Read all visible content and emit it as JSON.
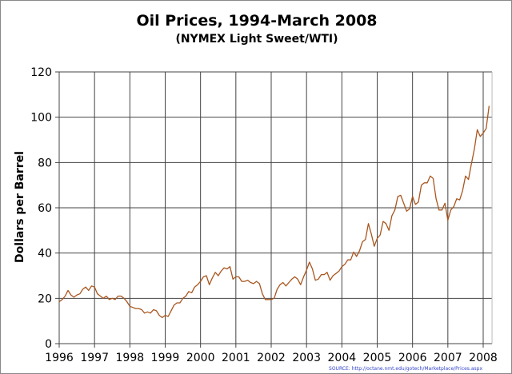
{
  "chart_data": {
    "type": "line",
    "title": "Oil Prices, 1994-March 2008",
    "subtitle": "(NYMEX Light Sweet/WTI)",
    "ylabel": "Dollars per Barrel",
    "xlabel": "",
    "xlim": [
      1996,
      2008.25
    ],
    "ylim": [
      0,
      120
    ],
    "xticks": [
      "1996",
      "1997",
      "1998",
      "1999",
      "2000",
      "2001",
      "2002",
      "2003",
      "2004",
      "2005",
      "2006",
      "2007",
      "2008"
    ],
    "yticks": [
      "0",
      "20",
      "40",
      "60",
      "80",
      "100",
      "120"
    ],
    "grid": true,
    "legend": "none",
    "line_color": "#a9561f",
    "series": [
      {
        "x_start": 1996,
        "x_step_months": 1,
        "values": [
          18.5,
          19.5,
          21,
          23.5,
          21.5,
          20.5,
          21.5,
          22,
          24,
          25,
          23.5,
          25.5,
          25,
          22,
          21,
          20,
          21,
          19.5,
          20,
          19.5,
          21,
          21,
          20,
          18.5,
          16.5,
          16,
          15.5,
          15.5,
          15,
          13.5,
          14,
          13.5,
          15,
          14.5,
          12.5,
          11.5,
          12.5,
          12,
          14.5,
          17,
          18,
          18,
          20,
          21,
          23,
          22.5,
          25,
          26,
          27.5,
          29.5,
          30,
          26,
          29,
          31.5,
          30,
          32,
          33.5,
          33,
          34,
          28.5,
          29.5,
          29.5,
          27.5,
          27.5,
          28,
          27,
          26.5,
          27.5,
          26.5,
          22,
          19.5,
          19.5,
          19.5,
          20,
          24,
          26,
          27,
          25.5,
          27,
          28.5,
          29.5,
          28.5,
          26,
          29.5,
          32.5,
          36,
          33,
          28,
          28.5,
          30.5,
          30.5,
          31.5,
          28,
          30,
          31,
          32,
          34,
          35,
          37,
          37,
          40.5,
          38.5,
          41,
          45,
          46,
          53,
          48.5,
          43,
          46.5,
          48,
          54,
          53,
          50,
          56.5,
          59,
          65,
          65.5,
          62,
          58.5,
          59.5,
          65,
          61.5,
          62.5,
          70,
          71,
          71,
          74,
          73,
          64,
          59,
          59,
          62,
          54.5,
          59,
          60.5,
          64,
          63.5,
          67.5,
          74,
          72.5,
          79.5,
          86,
          94.5,
          91.5,
          93,
          95,
          105
        ]
      }
    ]
  },
  "source": "SOURCE:  http://octane.nmt.edu/gotech/Marketplace/Prices.aspx"
}
